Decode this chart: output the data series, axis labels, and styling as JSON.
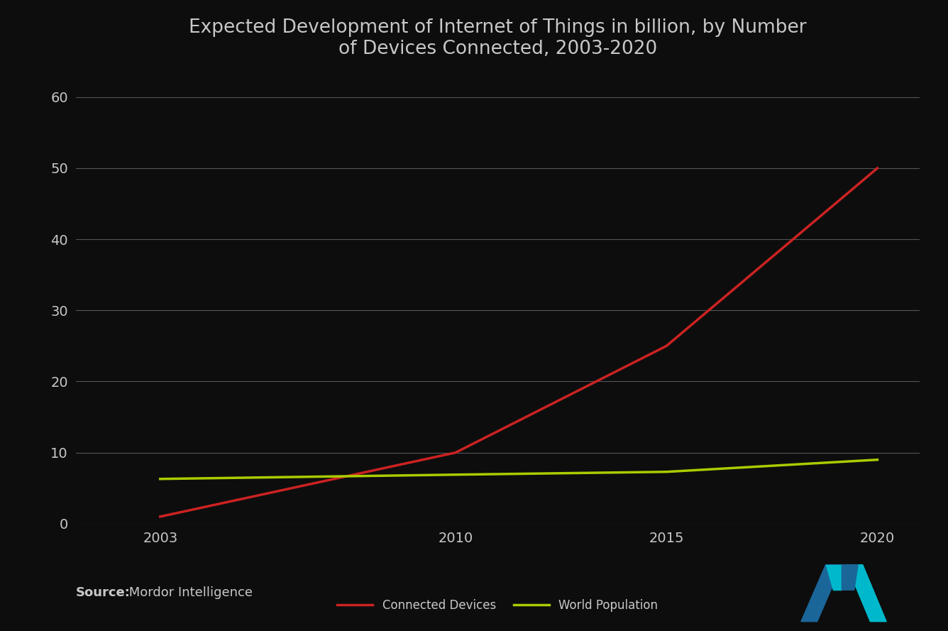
{
  "title": "Expected Development of Internet of Things in billion, by Number\nof Devices Connected, 2003-2020",
  "title_fontsize": 19,
  "background_color": "#0d0d0d",
  "text_color": "#c8c8c8",
  "grid_color": "#555555",
  "x_ticks": [
    2003,
    2010,
    2015,
    2020
  ],
  "xlim": [
    2001,
    2021
  ],
  "ylim": [
    0,
    63
  ],
  "y_ticks": [
    0,
    10,
    20,
    30,
    40,
    50,
    60
  ],
  "connected_devices": {
    "x": [
      2003,
      2010,
      2015,
      2020
    ],
    "y": [
      1,
      10,
      25,
      50
    ],
    "color": "#cc2222",
    "label": "Connected Devices",
    "linewidth": 2.5
  },
  "world_population": {
    "x": [
      2003,
      2010,
      2015,
      2020
    ],
    "y": [
      6.3,
      6.9,
      7.3,
      9.0
    ],
    "color": "#aacc00",
    "label": "World Population",
    "linewidth": 2.5
  },
  "source_bold": "Source:",
  "source_text": " Mordor Intelligence",
  "source_fontsize": 13,
  "legend_fontsize": 12,
  "logo_blue": "#1a6699",
  "logo_teal": "#00b8cc"
}
